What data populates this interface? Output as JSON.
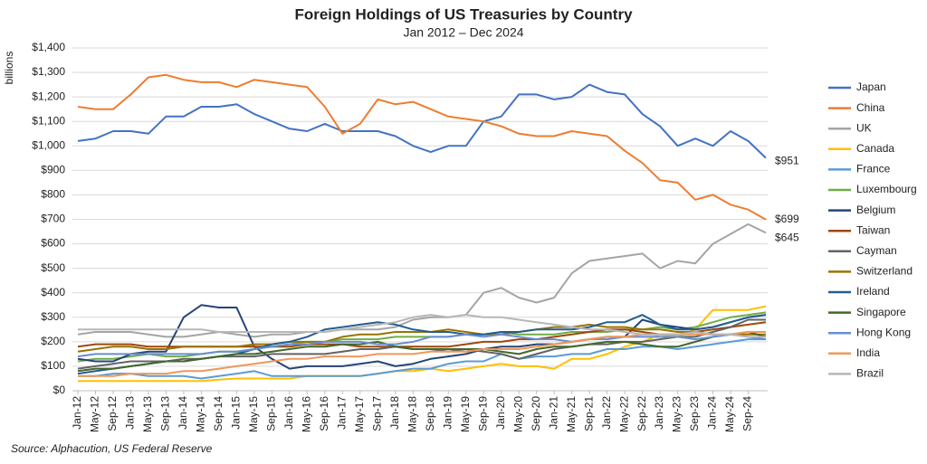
{
  "chart_data": {
    "type": "line",
    "title": "Foreign Holdings of US Treasuries by Country",
    "subtitle": "Jan 2012 – Dec 2024",
    "y_label": "billions",
    "source": "Source: Alphacution, US Federal Reserve",
    "grid": true,
    "legend": "right",
    "categories": [
      "Jan-12",
      "May-12",
      "Sep-12",
      "Jan-13",
      "May-13",
      "Sep-13",
      "Jan-14",
      "May-14",
      "Sep-14",
      "Jan-15",
      "May-15",
      "Sep-15",
      "Jan-16",
      "May-16",
      "Sep-16",
      "Jan-17",
      "May-17",
      "Sep-17",
      "Jan-18",
      "May-18",
      "Sep-18",
      "Jan-19",
      "May-19",
      "Sep-19",
      "Jan-20",
      "May-20",
      "Sep-20",
      "Jan-21",
      "May-21",
      "Sep-21",
      "Jan-22",
      "May-22",
      "Sep-22",
      "Jan-23",
      "May-23",
      "Sep-23",
      "Jan-24",
      "May-24",
      "Sep-24",
      null
    ],
    "ylim": [
      0,
      1400
    ],
    "yticks": [
      {
        "value": 0,
        "label": "$0"
      },
      {
        "value": 100,
        "label": "$100"
      },
      {
        "value": 200,
        "label": "$200"
      },
      {
        "value": 300,
        "label": "$300"
      },
      {
        "value": 400,
        "label": "$400"
      },
      {
        "value": 500,
        "label": "$500"
      },
      {
        "value": 600,
        "label": "$600"
      },
      {
        "value": 700,
        "label": "$700"
      },
      {
        "value": 800,
        "label": "$800"
      },
      {
        "value": 900,
        "label": "$900"
      },
      {
        "value": 1000,
        "label": "$1,000"
      },
      {
        "value": 1100,
        "label": "$1,100"
      },
      {
        "value": 1200,
        "label": "$1,200"
      },
      {
        "value": 1300,
        "label": "$1,300"
      },
      {
        "value": 1400,
        "label": "$1,400"
      }
    ],
    "series": [
      {
        "name": "Japan",
        "color": "#4472c4",
        "values": [
          1020,
          1030,
          1060,
          1060,
          1050,
          1120,
          1120,
          1160,
          1160,
          1170,
          1130,
          1100,
          1070,
          1060,
          1090,
          1060,
          1060,
          1060,
          1040,
          1000,
          975,
          1000,
          1000,
          1100,
          1120,
          1210,
          1210,
          1190,
          1200,
          1250,
          1220,
          1210,
          1130,
          1080,
          1000,
          1030,
          1000,
          1060,
          1020,
          951
        ],
        "value_labels": [
          null,
          null,
          null,
          null,
          null,
          null,
          null,
          null,
          null,
          null,
          null,
          null,
          null,
          null,
          null,
          null,
          null,
          null,
          null,
          null,
          null,
          null,
          null,
          null,
          null,
          null,
          null,
          null,
          null,
          null,
          null,
          null,
          null,
          null,
          null,
          null,
          null,
          null,
          null,
          "$951"
        ]
      },
      {
        "name": "China",
        "color": "#ed7d31",
        "values": [
          1160,
          1150,
          1150,
          1210,
          1280,
          1290,
          1270,
          1260,
          1260,
          1240,
          1270,
          1260,
          1250,
          1240,
          1160,
          1050,
          1090,
          1190,
          1170,
          1180,
          1150,
          1120,
          1110,
          1100,
          1080,
          1050,
          1040,
          1040,
          1060,
          1050,
          1040,
          980,
          930,
          860,
          850,
          780,
          800,
          760,
          740,
          699
        ],
        "value_labels": [
          null,
          null,
          null,
          null,
          null,
          null,
          null,
          null,
          null,
          null,
          null,
          null,
          null,
          null,
          null,
          null,
          null,
          null,
          null,
          null,
          null,
          null,
          null,
          null,
          null,
          null,
          null,
          null,
          null,
          null,
          null,
          null,
          null,
          null,
          null,
          null,
          null,
          null,
          null,
          "$699"
        ]
      },
      {
        "name": "UK",
        "color": "#a5a5a5",
        "values": [
          230,
          240,
          240,
          240,
          230,
          220,
          220,
          230,
          240,
          230,
          220,
          230,
          230,
          240,
          240,
          250,
          250,
          250,
          260,
          290,
          300,
          300,
          310,
          400,
          420,
          380,
          360,
          380,
          480,
          530,
          540,
          550,
          560,
          500,
          530,
          520,
          600,
          640,
          680,
          645
        ],
        "value_labels": [
          null,
          null,
          null,
          null,
          null,
          null,
          null,
          null,
          null,
          null,
          null,
          null,
          null,
          null,
          null,
          null,
          null,
          null,
          null,
          null,
          null,
          null,
          null,
          null,
          null,
          null,
          null,
          null,
          null,
          null,
          null,
          null,
          null,
          null,
          null,
          null,
          null,
          null,
          null,
          "$645"
        ]
      },
      {
        "name": "Canada",
        "color": "#ffc000",
        "values": [
          40,
          40,
          40,
          40,
          40,
          40,
          40,
          40,
          45,
          50,
          50,
          50,
          50,
          60,
          60,
          60,
          60,
          70,
          80,
          80,
          90,
          80,
          90,
          100,
          110,
          100,
          100,
          90,
          130,
          130,
          150,
          180,
          200,
          230,
          220,
          250,
          330,
          330,
          330,
          345
        ]
      },
      {
        "name": "France",
        "color": "#5b9bd5",
        "values": [
          60,
          60,
          70,
          70,
          60,
          60,
          60,
          50,
          60,
          70,
          80,
          60,
          60,
          60,
          60,
          60,
          60,
          70,
          80,
          90,
          90,
          110,
          120,
          120,
          150,
          130,
          140,
          140,
          150,
          150,
          170,
          170,
          180,
          180,
          170,
          180,
          190,
          200,
          210,
          210
        ]
      },
      {
        "name": "Luxembourg",
        "color": "#70ad47",
        "values": [
          120,
          130,
          130,
          140,
          150,
          140,
          140,
          150,
          160,
          160,
          170,
          180,
          190,
          200,
          200,
          210,
          210,
          210,
          220,
          220,
          220,
          220,
          230,
          230,
          240,
          230,
          230,
          230,
          240,
          240,
          240,
          250,
          250,
          260,
          250,
          260,
          280,
          300,
          310,
          320
        ]
      },
      {
        "name": "Belgium",
        "color": "#264478",
        "values": [
          130,
          120,
          120,
          150,
          160,
          160,
          300,
          350,
          340,
          340,
          180,
          130,
          90,
          100,
          100,
          100,
          110,
          120,
          100,
          110,
          130,
          140,
          150,
          170,
          180,
          180,
          190,
          190,
          200,
          210,
          220,
          220,
          290,
          270,
          260,
          250,
          260,
          280,
          300,
          310
        ]
      },
      {
        "name": "Taiwan",
        "color": "#9e480e",
        "values": [
          180,
          190,
          190,
          190,
          180,
          180,
          180,
          180,
          180,
          180,
          180,
          180,
          180,
          190,
          190,
          190,
          180,
          180,
          180,
          180,
          180,
          180,
          190,
          200,
          200,
          210,
          210,
          220,
          230,
          240,
          250,
          250,
          240,
          230,
          230,
          240,
          250,
          260,
          270,
          280
        ]
      },
      {
        "name": "Cayman",
        "color": "#636363",
        "values": [
          90,
          100,
          110,
          120,
          120,
          120,
          130,
          130,
          140,
          140,
          140,
          150,
          150,
          150,
          150,
          160,
          170,
          170,
          180,
          170,
          170,
          160,
          170,
          160,
          150,
          130,
          150,
          170,
          180,
          190,
          190,
          200,
          200,
          210,
          220,
          220,
          240,
          260,
          290,
          290
        ]
      },
      {
        "name": "Switzerland",
        "color": "#997300",
        "values": [
          160,
          170,
          180,
          180,
          170,
          170,
          180,
          180,
          180,
          180,
          190,
          190,
          200,
          200,
          200,
          220,
          230,
          230,
          240,
          240,
          240,
          250,
          240,
          230,
          230,
          240,
          250,
          260,
          260,
          270,
          260,
          260,
          250,
          250,
          240,
          240,
          230,
          230,
          230,
          230
        ]
      },
      {
        "name": "Ireland",
        "color": "#255e91",
        "values": [
          70,
          80,
          90,
          100,
          110,
          120,
          120,
          130,
          140,
          150,
          170,
          190,
          200,
          220,
          250,
          260,
          270,
          280,
          270,
          250,
          240,
          240,
          230,
          230,
          240,
          240,
          250,
          250,
          250,
          260,
          280,
          280,
          310,
          270,
          250,
          250,
          260,
          280,
          300,
          310
        ]
      },
      {
        "name": "Singapore",
        "color": "#43682b",
        "values": [
          80,
          90,
          90,
          100,
          110,
          120,
          120,
          130,
          140,
          150,
          150,
          160,
          170,
          180,
          180,
          190,
          190,
          200,
          180,
          170,
          170,
          170,
          170,
          170,
          160,
          150,
          170,
          180,
          180,
          190,
          200,
          200,
          190,
          180,
          180,
          200,
          220,
          230,
          240,
          220
        ]
      },
      {
        "name": "Hong Kong",
        "color": "#698ed0",
        "values": [
          140,
          150,
          150,
          150,
          150,
          150,
          150,
          150,
          160,
          160,
          170,
          180,
          190,
          190,
          200,
          200,
          200,
          190,
          190,
          200,
          220,
          220,
          230,
          220,
          230,
          220,
          210,
          210,
          200,
          210,
          210,
          220,
          220,
          220,
          220,
          210,
          220,
          230,
          220,
          210
        ]
      },
      {
        "name": "India",
        "color": "#f1975a",
        "values": [
          60,
          60,
          60,
          70,
          70,
          70,
          80,
          80,
          90,
          100,
          110,
          120,
          130,
          130,
          140,
          140,
          140,
          150,
          150,
          150,
          160,
          160,
          160,
          170,
          170,
          170,
          180,
          190,
          200,
          210,
          220,
          220,
          230,
          230,
          230,
          230,
          230,
          230,
          240,
          240
        ]
      },
      {
        "name": "Brazil",
        "color": "#b7b7b7",
        "values": [
          250,
          250,
          250,
          250,
          250,
          250,
          250,
          250,
          240,
          240,
          240,
          240,
          240,
          240,
          240,
          250,
          260,
          270,
          280,
          300,
          310,
          300,
          310,
          300,
          300,
          290,
          280,
          270,
          260,
          250,
          250,
          240,
          230,
          230,
          230,
          240,
          230,
          230,
          220,
          220
        ]
      }
    ]
  }
}
